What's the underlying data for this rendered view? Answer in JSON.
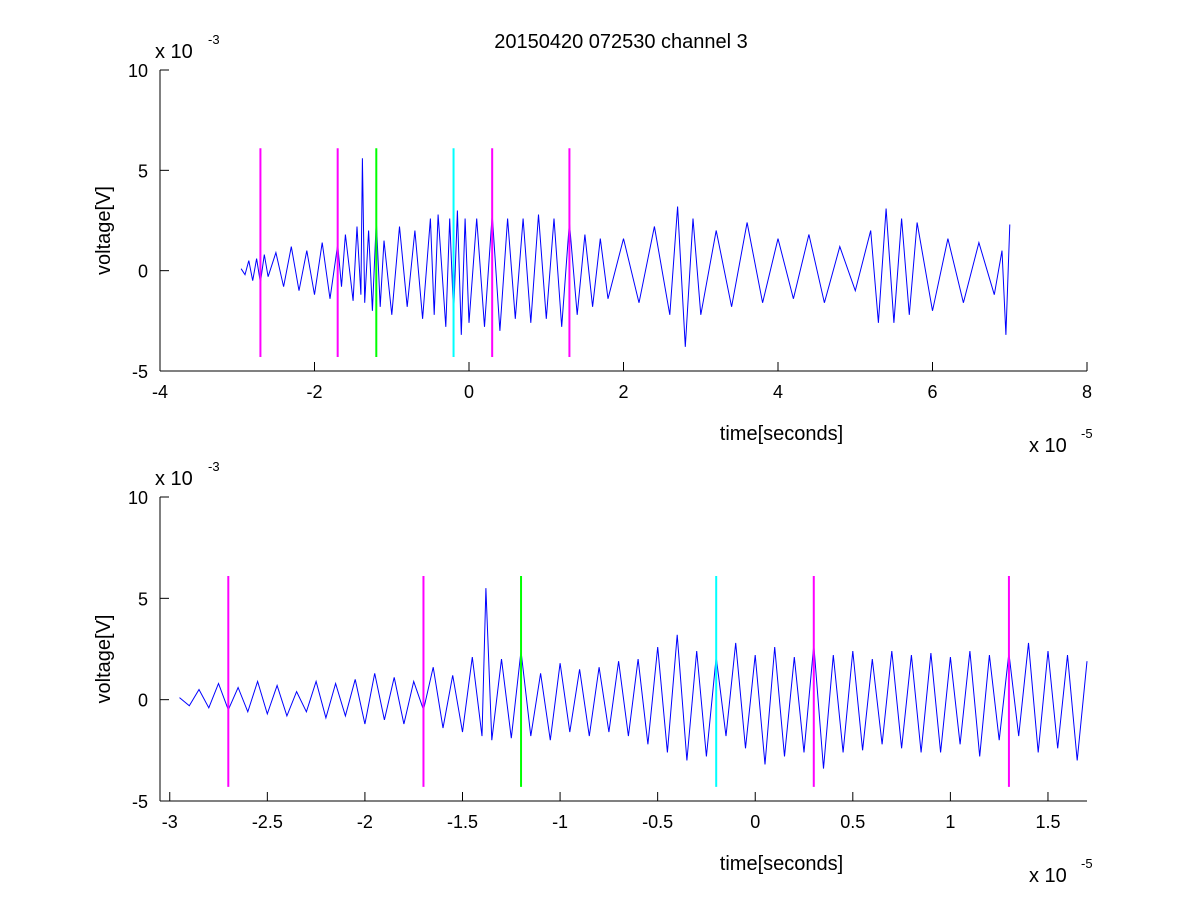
{
  "title": "20150420 072530 channel 3",
  "chart_data": [
    {
      "type": "line",
      "title": "20150420 072530 channel 3",
      "xlabel": "time[seconds]",
      "ylabel": "voltage[V]",
      "x_multiplier_label": "x 10",
      "x_multiplier_exp": "-5",
      "y_multiplier_label": "x 10",
      "y_multiplier_exp": "-3",
      "xlim": [
        -4,
        8
      ],
      "ylim": [
        -5,
        10
      ],
      "xticks": [
        -4,
        -2,
        0,
        2,
        4,
        6,
        8
      ],
      "yticks": [
        -5,
        0,
        5,
        10
      ],
      "xtick_labels": [
        "-4",
        "-2",
        "0",
        "2",
        "4",
        "6",
        "8"
      ],
      "ytick_labels": [
        "-5",
        "0",
        "5",
        "10"
      ],
      "grid": false,
      "series": [
        {
          "color": "#0000ff",
          "x": [
            -2.95,
            -2.9,
            -2.85,
            -2.8,
            -2.75,
            -2.7,
            -2.65,
            -2.6,
            -2.5,
            -2.4,
            -2.3,
            -2.2,
            -2.1,
            -2.0,
            -1.9,
            -1.8,
            -1.7,
            -1.65,
            -1.6,
            -1.5,
            -1.45,
            -1.4,
            -1.38,
            -1.35,
            -1.3,
            -1.25,
            -1.2,
            -1.15,
            -1.1,
            -1.0,
            -0.9,
            -0.8,
            -0.7,
            -0.6,
            -0.5,
            -0.45,
            -0.4,
            -0.3,
            -0.25,
            -0.2,
            -0.15,
            -0.1,
            -0.05,
            0.0,
            0.1,
            0.2,
            0.3,
            0.4,
            0.5,
            0.6,
            0.7,
            0.8,
            0.9,
            1.0,
            1.1,
            1.2,
            1.3,
            1.4,
            1.5,
            1.6,
            1.7,
            1.8,
            2.0,
            2.2,
            2.4,
            2.6,
            2.7,
            2.8,
            2.9,
            3.0,
            3.2,
            3.4,
            3.6,
            3.8,
            4.0,
            4.2,
            4.4,
            4.6,
            4.8,
            5.0,
            5.2,
            5.3,
            5.4,
            5.5,
            5.6,
            5.7,
            5.8,
            6.0,
            6.2,
            6.4,
            6.6,
            6.8,
            6.9,
            6.95,
            7.0
          ],
          "y": [
            0.1,
            -0.2,
            0.5,
            -0.5,
            0.6,
            -0.6,
            0.8,
            -0.3,
            0.9,
            -0.8,
            1.2,
            -1.0,
            1.0,
            -1.2,
            1.4,
            -1.4,
            1.3,
            -0.8,
            1.8,
            -1.5,
            2.2,
            -1.2,
            5.6,
            -1.6,
            2.0,
            -2.0,
            2.5,
            -1.8,
            1.5,
            -2.2,
            2.2,
            -1.8,
            2.0,
            -2.4,
            2.6,
            -2.2,
            2.8,
            -2.8,
            2.6,
            -2.2,
            3.0,
            -3.2,
            2.6,
            -2.6,
            2.6,
            -2.8,
            2.8,
            -3.0,
            2.6,
            -2.4,
            2.6,
            -2.6,
            2.8,
            -2.4,
            2.6,
            -2.8,
            2.4,
            -2.2,
            1.8,
            -1.8,
            1.6,
            -1.4,
            1.6,
            -1.6,
            2.2,
            -2.2,
            3.2,
            -3.8,
            2.6,
            -2.2,
            2.0,
            -1.8,
            2.4,
            -1.6,
            1.6,
            -1.4,
            1.8,
            -1.6,
            1.2,
            -1.0,
            2.0,
            -2.6,
            3.1,
            -2.6,
            2.6,
            -2.2,
            2.4,
            -2.0,
            1.6,
            -1.6,
            1.4,
            -1.2,
            1.0,
            -3.2,
            2.3
          ]
        }
      ],
      "markers": [
        {
          "x": -2.7,
          "color": "#ff00ff"
        },
        {
          "x": -1.7,
          "color": "#ff00ff"
        },
        {
          "x": -1.2,
          "color": "#00ff00"
        },
        {
          "x": -0.2,
          "color": "#00ffff"
        },
        {
          "x": 0.3,
          "color": "#ff00ff"
        },
        {
          "x": 1.3,
          "color": "#ff00ff"
        }
      ],
      "marker_range": [
        -4.3,
        6.1
      ]
    },
    {
      "type": "line",
      "title": "",
      "xlabel": "time[seconds]",
      "ylabel": "voltage[V]",
      "x_multiplier_label": "x 10",
      "x_multiplier_exp": "-5",
      "y_multiplier_label": "x 10",
      "y_multiplier_exp": "-3",
      "xlim": [
        -3.05,
        1.7
      ],
      "ylim": [
        -5,
        10
      ],
      "xticks": [
        -3,
        -2.5,
        -2,
        -1.5,
        -1,
        -0.5,
        0,
        0.5,
        1,
        1.5
      ],
      "yticks": [
        -5,
        0,
        5,
        10
      ],
      "xtick_labels": [
        "-3",
        "-2.5",
        "-2",
        "-1.5",
        "-1",
        "-0.5",
        "0",
        "0.5",
        "1",
        "1.5"
      ],
      "ytick_labels": [
        "-5",
        "0",
        "5",
        "10"
      ],
      "grid": false,
      "series": [
        {
          "color": "#0000ff",
          "x": [
            -2.95,
            -2.9,
            -2.85,
            -2.8,
            -2.75,
            -2.7,
            -2.65,
            -2.6,
            -2.55,
            -2.5,
            -2.45,
            -2.4,
            -2.35,
            -2.3,
            -2.25,
            -2.2,
            -2.15,
            -2.1,
            -2.05,
            -2.0,
            -1.95,
            -1.9,
            -1.85,
            -1.8,
            -1.75,
            -1.7,
            -1.65,
            -1.6,
            -1.55,
            -1.5,
            -1.45,
            -1.4,
            -1.38,
            -1.35,
            -1.3,
            -1.25,
            -1.2,
            -1.15,
            -1.1,
            -1.05,
            -1.0,
            -0.95,
            -0.9,
            -0.85,
            -0.8,
            -0.75,
            -0.7,
            -0.65,
            -0.6,
            -0.55,
            -0.5,
            -0.45,
            -0.4,
            -0.35,
            -0.3,
            -0.25,
            -0.2,
            -0.15,
            -0.1,
            -0.05,
            0.0,
            0.05,
            0.1,
            0.15,
            0.2,
            0.25,
            0.3,
            0.35,
            0.4,
            0.45,
            0.5,
            0.55,
            0.6,
            0.65,
            0.7,
            0.75,
            0.8,
            0.85,
            0.9,
            0.95,
            1.0,
            1.05,
            1.1,
            1.15,
            1.2,
            1.25,
            1.3,
            1.35,
            1.4,
            1.45,
            1.5,
            1.55,
            1.6,
            1.65,
            1.7
          ],
          "y": [
            0.1,
            -0.3,
            0.5,
            -0.4,
            0.8,
            -0.5,
            0.6,
            -0.6,
            0.9,
            -0.7,
            0.7,
            -0.8,
            0.4,
            -0.6,
            0.9,
            -0.9,
            0.8,
            -0.8,
            1.0,
            -1.2,
            1.3,
            -1.0,
            1.1,
            -1.2,
            0.9,
            -0.5,
            1.6,
            -1.4,
            1.2,
            -1.6,
            2.1,
            -1.8,
            5.5,
            -2.0,
            2.0,
            -1.9,
            2.4,
            -1.8,
            1.3,
            -2.0,
            1.8,
            -1.6,
            1.5,
            -1.8,
            1.6,
            -1.6,
            1.9,
            -1.8,
            2.0,
            -2.2,
            2.6,
            -2.6,
            3.2,
            -3.0,
            2.4,
            -2.8,
            2.1,
            -1.8,
            2.8,
            -2.4,
            2.2,
            -3.2,
            2.6,
            -2.8,
            2.1,
            -2.6,
            2.7,
            -3.4,
            2.2,
            -2.6,
            2.4,
            -2.5,
            2.0,
            -2.2,
            2.4,
            -2.4,
            2.2,
            -2.6,
            2.3,
            -2.6,
            2.1,
            -2.2,
            2.4,
            -2.8,
            2.2,
            -2.0,
            2.3,
            -1.8,
            2.8,
            -2.6,
            2.4,
            -2.4,
            2.2,
            -3.0,
            1.9
          ]
        }
      ],
      "markers": [
        {
          "x": -2.7,
          "color": "#ff00ff"
        },
        {
          "x": -1.7,
          "color": "#ff00ff"
        },
        {
          "x": -1.2,
          "color": "#00ff00"
        },
        {
          "x": -0.2,
          "color": "#00ffff"
        },
        {
          "x": 0.3,
          "color": "#ff00ff"
        },
        {
          "x": 1.3,
          "color": "#ff00ff"
        }
      ],
      "marker_range": [
        -4.3,
        6.1
      ]
    }
  ]
}
